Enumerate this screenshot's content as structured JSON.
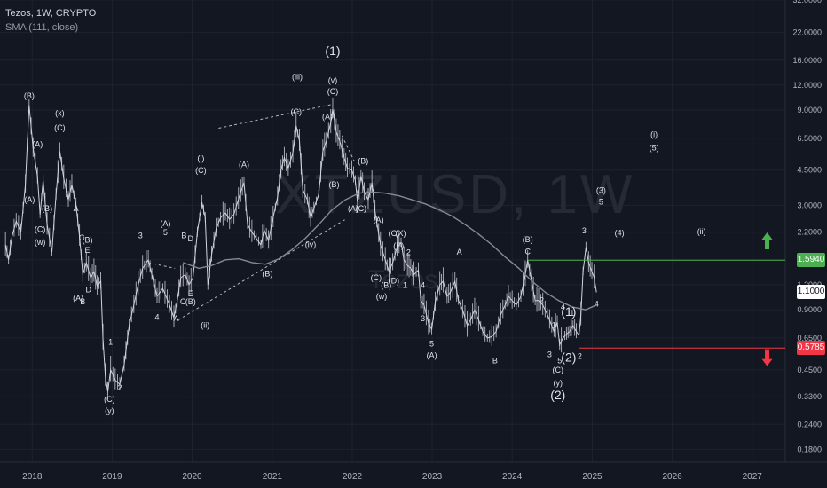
{
  "header": {
    "symbol_line": "Tezos, 1W, CRYPTO",
    "indicator_line": "SMA (111, close)"
  },
  "watermark": {
    "ticker": "XTZUSD, 1W",
    "name": "Tezos"
  },
  "colors": {
    "background": "#131722",
    "candle": "#d1d4dc",
    "sma": "#868993",
    "resistance": "#4caf50",
    "support": "#f23645",
    "grid": "#1e222d",
    "axis_text": "#b2b5be",
    "last_price_badge": "#ffffff"
  },
  "chart_data": {
    "type": "candlestick",
    "title": "Tezos, 1W, CRYPTO",
    "y_scale": "log",
    "ylim": [
      0.155,
      32.0
    ],
    "y_ticks": [
      "32.0000",
      "22.0000",
      "16.0000",
      "12.0000",
      "9.0000",
      "6.5000",
      "4.5000",
      "3.0000",
      "2.2000",
      "1.6000",
      "1.2000",
      "0.9000",
      "0.6500",
      "0.4500",
      "0.3300",
      "0.2400",
      "0.1800"
    ],
    "x_ticks": [
      "2018",
      "2019",
      "2020",
      "2021",
      "2022",
      "2023",
      "2024",
      "2025",
      "2026",
      "2027"
    ],
    "xlim": [
      "2017-08-07",
      "2027-06-01"
    ],
    "price_series": [
      [
        "2017-09-01",
        1.9
      ],
      [
        "2017-09-15",
        1.6
      ],
      [
        "2017-10-01",
        2.1
      ],
      [
        "2017-10-20",
        2.5
      ],
      [
        "2017-11-10",
        2.2
      ],
      [
        "2017-12-01",
        3.8
      ],
      [
        "2017-12-18",
        9.5
      ],
      [
        "2018-01-05",
        5.8
      ],
      [
        "2018-01-25",
        4.2
      ],
      [
        "2018-02-06",
        2.7
      ],
      [
        "2018-02-20",
        4.0
      ],
      [
        "2018-03-10",
        2.4
      ],
      [
        "2018-04-01",
        1.75
      ],
      [
        "2018-04-20",
        3.4
      ],
      [
        "2018-05-07",
        5.6
      ],
      [
        "2018-05-25",
        4.1
      ],
      [
        "2018-06-15",
        3.2
      ],
      [
        "2018-07-01",
        3.8
      ],
      [
        "2018-07-20",
        3.0
      ],
      [
        "2018-08-05",
        2.1
      ],
      [
        "2018-08-20",
        1.35
      ],
      [
        "2018-09-05",
        1.55
      ],
      [
        "2018-09-25",
        1.3
      ],
      [
        "2018-10-10",
        1.4
      ],
      [
        "2018-10-25",
        1.18
      ],
      [
        "2018-11-10",
        1.25
      ],
      [
        "2018-11-20",
        0.65
      ],
      [
        "2018-12-01",
        0.42
      ],
      [
        "2018-12-12",
        0.35
      ],
      [
        "2018-12-25",
        0.45
      ],
      [
        "2019-01-15",
        0.4
      ],
      [
        "2019-02-05",
        0.38
      ],
      [
        "2019-02-25",
        0.48
      ],
      [
        "2019-03-20",
        0.75
      ],
      [
        "2019-04-10",
        0.95
      ],
      [
        "2019-04-30",
        1.2
      ],
      [
        "2019-05-20",
        1.45
      ],
      [
        "2019-06-15",
        1.6
      ],
      [
        "2019-07-01",
        1.35
      ],
      [
        "2019-07-25",
        1.05
      ],
      [
        "2019-08-20",
        1.15
      ],
      [
        "2019-09-20",
        0.95
      ],
      [
        "2019-10-10",
        0.82
      ],
      [
        "2019-10-25",
        1.0
      ],
      [
        "2019-11-10",
        1.3
      ],
      [
        "2019-12-01",
        1.35
      ],
      [
        "2019-12-18",
        1.2
      ],
      [
        "2020-01-05",
        1.3
      ],
      [
        "2020-01-25",
        2.2
      ],
      [
        "2020-02-15",
        3.1
      ],
      [
        "2020-03-01",
        2.6
      ],
      [
        "2020-03-13",
        1.2
      ],
      [
        "2020-03-30",
        1.7
      ],
      [
        "2020-04-20",
        2.3
      ],
      [
        "2020-05-10",
        2.6
      ],
      [
        "2020-06-01",
        2.75
      ],
      [
        "2020-06-20",
        2.55
      ],
      [
        "2020-07-10",
        2.7
      ],
      [
        "2020-08-10",
        3.5
      ],
      [
        "2020-08-25",
        3.9
      ],
      [
        "2020-09-10",
        2.4
      ],
      [
        "2020-09-30",
        2.2
      ],
      [
        "2020-10-20",
        2.05
      ],
      [
        "2020-11-10",
        1.9
      ],
      [
        "2020-11-25",
        2.25
      ],
      [
        "2020-12-15",
        2.0
      ],
      [
        "2021-01-05",
        2.6
      ],
      [
        "2021-01-25",
        3.3
      ],
      [
        "2021-02-10",
        4.5
      ],
      [
        "2021-02-25",
        5.2
      ],
      [
        "2021-03-15",
        4.6
      ],
      [
        "2021-04-05",
        5.5
      ],
      [
        "2021-04-20",
        7.5
      ],
      [
        "2021-05-05",
        6.3
      ],
      [
        "2021-05-20",
        3.6
      ],
      [
        "2021-06-10",
        3.2
      ],
      [
        "2021-06-25",
        2.6
      ],
      [
        "2021-07-10",
        2.9
      ],
      [
        "2021-08-01",
        3.4
      ],
      [
        "2021-08-20",
        5.6
      ],
      [
        "2021-09-05",
        6.3
      ],
      [
        "2021-09-25",
        7.8
      ],
      [
        "2021-10-04",
        9.1
      ],
      [
        "2021-10-20",
        7.0
      ],
      [
        "2021-11-05",
        6.3
      ],
      [
        "2021-11-25",
        5.2
      ],
      [
        "2021-12-10",
        4.6
      ],
      [
        "2021-12-30",
        4.5
      ],
      [
        "2022-01-15",
        4.0
      ],
      [
        "2022-01-25",
        3.1
      ],
      [
        "2022-02-10",
        4.2
      ],
      [
        "2022-02-25",
        3.5
      ],
      [
        "2022-03-15",
        3.2
      ],
      [
        "2022-04-01",
        3.9
      ],
      [
        "2022-04-15",
        2.8
      ],
      [
        "2022-05-10",
        1.9
      ],
      [
        "2022-06-01",
        1.6
      ],
      [
        "2022-06-18",
        1.4
      ],
      [
        "2022-07-05",
        1.55
      ],
      [
        "2022-07-25",
        1.85
      ],
      [
        "2022-08-12",
        1.95
      ],
      [
        "2022-08-25",
        1.6
      ],
      [
        "2022-09-10",
        1.5
      ],
      [
        "2022-09-25",
        1.45
      ],
      [
        "2022-10-10",
        1.35
      ],
      [
        "2022-10-30",
        1.42
      ],
      [
        "2022-11-10",
        1.0
      ],
      [
        "2022-11-25",
        0.95
      ],
      [
        "2022-12-15",
        0.77
      ],
      [
        "2022-12-30",
        0.72
      ],
      [
        "2023-01-15",
        0.98
      ],
      [
        "2023-02-05",
        1.2
      ],
      [
        "2023-02-20",
        1.25
      ],
      [
        "2023-03-10",
        1.05
      ],
      [
        "2023-03-25",
        1.1
      ],
      [
        "2023-04-15",
        1.25
      ],
      [
        "2023-05-01",
        1.0
      ],
      [
        "2023-05-20",
        0.9
      ],
      [
        "2023-06-10",
        0.75
      ],
      [
        "2023-06-25",
        0.8
      ],
      [
        "2023-07-14",
        0.9
      ],
      [
        "2023-08-01",
        0.8
      ],
      [
        "2023-08-20",
        0.7
      ],
      [
        "2023-09-10",
        0.65
      ],
      [
        "2023-09-30",
        0.66
      ],
      [
        "2023-10-20",
        0.7
      ],
      [
        "2023-11-10",
        0.85
      ],
      [
        "2023-11-30",
        0.95
      ],
      [
        "2023-12-15",
        1.05
      ],
      [
        "2024-01-01",
        1.0
      ],
      [
        "2024-01-20",
        0.95
      ],
      [
        "2024-02-10",
        1.05
      ],
      [
        "2024-03-01",
        1.35
      ],
      [
        "2024-03-12",
        1.6
      ],
      [
        "2024-03-30",
        1.25
      ],
      [
        "2024-04-15",
        1.0
      ],
      [
        "2024-05-01",
        1.0
      ],
      [
        "2024-05-20",
        0.95
      ],
      [
        "2024-06-10",
        0.85
      ],
      [
        "2024-06-30",
        0.75
      ],
      [
        "2024-07-10",
        0.7
      ],
      [
        "2024-07-25",
        0.78
      ],
      [
        "2024-08-05",
        0.6
      ],
      [
        "2024-08-20",
        0.65
      ],
      [
        "2024-09-05",
        0.68
      ],
      [
        "2024-09-20",
        0.7
      ],
      [
        "2024-10-05",
        0.75
      ],
      [
        "2024-10-20",
        0.7
      ],
      [
        "2024-11-01",
        0.67
      ],
      [
        "2024-11-10",
        0.85
      ],
      [
        "2024-11-20",
        1.4
      ],
      [
        "2024-12-03",
        1.85
      ],
      [
        "2024-12-15",
        1.55
      ],
      [
        "2024-12-30",
        1.4
      ],
      [
        "2025-01-10",
        1.3
      ],
      [
        "2025-01-20",
        1.1
      ]
    ],
    "sma_series": [
      [
        "2019-11-20",
        1.55
      ],
      [
        "2020-02-01",
        1.45
      ],
      [
        "2020-04-01",
        1.5
      ],
      [
        "2020-06-01",
        1.6
      ],
      [
        "2020-08-01",
        1.62
      ],
      [
        "2020-10-01",
        1.55
      ],
      [
        "2020-12-01",
        1.52
      ],
      [
        "2021-02-01",
        1.62
      ],
      [
        "2021-04-01",
        1.8
      ],
      [
        "2021-06-01",
        2.05
      ],
      [
        "2021-08-01",
        2.4
      ],
      [
        "2021-10-01",
        2.85
      ],
      [
        "2021-12-01",
        3.2
      ],
      [
        "2022-02-01",
        3.45
      ],
      [
        "2022-04-01",
        3.5
      ],
      [
        "2022-06-01",
        3.45
      ],
      [
        "2022-08-01",
        3.35
      ],
      [
        "2022-10-01",
        3.2
      ],
      [
        "2022-12-01",
        3.05
      ],
      [
        "2023-02-01",
        2.85
      ],
      [
        "2023-04-01",
        2.65
      ],
      [
        "2023-06-01",
        2.4
      ],
      [
        "2023-08-01",
        2.15
      ],
      [
        "2023-10-01",
        1.9
      ],
      [
        "2023-12-01",
        1.65
      ],
      [
        "2024-02-01",
        1.45
      ],
      [
        "2024-04-01",
        1.25
      ],
      [
        "2024-06-01",
        1.1
      ],
      [
        "2024-08-01",
        1.0
      ],
      [
        "2024-10-01",
        0.93
      ],
      [
        "2024-12-01",
        0.9
      ],
      [
        "2025-01-20",
        0.95
      ]
    ],
    "horizontal_levels": [
      {
        "label": "1.5940",
        "value": 1.594,
        "color": "#4caf50",
        "from": "2024-03-12"
      },
      {
        "label": "0.5785",
        "value": 0.5785,
        "color": "#f23645",
        "from": "2024-11-01"
      }
    ],
    "last_price": {
      "label": "1.1000",
      "value": 1.1
    },
    "trendlines": [
      {
        "from": [
          "2020-05-01",
          7.3
        ],
        "to": [
          "2021-09-30",
          9.6
        ]
      },
      {
        "from": [
          "2019-10-30",
          0.8
        ],
        "to": [
          "2021-12-01",
          2.55
        ]
      },
      {
        "from": [
          "2019-06-15",
          1.55
        ],
        "to": [
          "2019-10-15",
          1.45
        ]
      },
      {
        "from": [
          "2021-11-15",
          6.7
        ],
        "to": [
          "2022-01-10",
          5.0
        ]
      }
    ],
    "arrows": [
      {
        "dir": "up",
        "date": "2027-03-10",
        "value": 1.98,
        "color": "#4caf50"
      },
      {
        "dir": "down",
        "date": "2027-03-10",
        "value": 0.52,
        "color": "#f23645"
      }
    ],
    "wave_labels": [
      {
        "t": "(B)",
        "d": "2017-12-18",
        "v": 10.3
      },
      {
        "t": "(A)",
        "d": "2018-01-25",
        "v": 5.9
      },
      {
        "t": "(C)",
        "d": "2018-02-06",
        "v": 2.2
      },
      {
        "t": "(w)",
        "d": "2018-02-06",
        "v": 1.9
      },
      {
        "t": "(x)",
        "d": "2018-05-07",
        "v": 8.4
      },
      {
        "t": "(C)",
        "d": "2018-05-07",
        "v": 7.1
      },
      {
        "t": "(A)",
        "d": "2017-12-20",
        "v": 3.1
      },
      {
        "t": "(B)",
        "d": "2018-03-10",
        "v": 2.8
      },
      {
        "t": "A",
        "d": "2018-07-20",
        "v": 2.8
      },
      {
        "t": "C",
        "d": "2018-08-15",
        "v": 2.0
      },
      {
        "t": "(B)",
        "d": "2018-09-10",
        "v": 1.95
      },
      {
        "t": "E",
        "d": "2018-09-10",
        "v": 1.73
      },
      {
        "t": "(A)",
        "d": "2018-07-30",
        "v": 1.0
      },
      {
        "t": "B",
        "d": "2018-08-20",
        "v": 0.96
      },
      {
        "t": "D",
        "d": "2018-09-15",
        "v": 1.1
      },
      {
        "t": "1",
        "d": "2018-12-25",
        "v": 0.6
      },
      {
        "t": "2",
        "d": "2019-02-05",
        "v": 0.355
      },
      {
        "t": "(C)",
        "d": "2018-12-20",
        "v": 0.31
      },
      {
        "t": "(y)",
        "d": "2018-12-20",
        "v": 0.272
      },
      {
        "t": "3",
        "d": "2019-05-10",
        "v": 2.05
      },
      {
        "t": "4",
        "d": "2019-07-25",
        "v": 0.8
      },
      {
        "t": "(A)",
        "d": "2019-09-01",
        "v": 2.35
      },
      {
        "t": "5",
        "d": "2019-09-01",
        "v": 2.13
      },
      {
        "t": "B",
        "d": "2019-11-25",
        "v": 2.05
      },
      {
        "t": "D",
        "d": "2019-12-25",
        "v": 1.98
      },
      {
        "t": "E",
        "d": "2019-12-25",
        "v": 1.05
      },
      {
        "t": "C",
        "d": "2019-11-20",
        "v": 0.96
      },
      {
        "t": "(B)",
        "d": "2019-12-25",
        "v": 0.96
      },
      {
        "t": "A",
        "d": "2019-10-20",
        "v": 0.79
      },
      {
        "t": "(ii)",
        "d": "2020-03-01",
        "v": 0.73
      },
      {
        "t": "(i)",
        "d": "2020-02-10",
        "v": 5.0
      },
      {
        "t": "(C)",
        "d": "2020-02-10",
        "v": 4.35
      },
      {
        "t": "(A)",
        "d": "2020-08-25",
        "v": 4.65
      },
      {
        "t": "(B)",
        "d": "2020-12-10",
        "v": 1.32
      },
      {
        "t": "(iii)",
        "d": "2021-04-25",
        "v": 12.8
      },
      {
        "t": "(C)",
        "d": "2021-04-20",
        "v": 8.55
      },
      {
        "t": "(iv)",
        "d": "2021-06-25",
        "v": 1.85
      },
      {
        "t": "(1)",
        "d": "2021-10-04",
        "v": 17.0
      },
      {
        "t": "(v)",
        "d": "2021-10-04",
        "v": 12.3
      },
      {
        "t": "(C)",
        "d": "2021-10-04",
        "v": 10.8
      },
      {
        "t": "(A)",
        "d": "2021-09-10",
        "v": 8.1
      },
      {
        "t": "(B)",
        "d": "2021-10-10",
        "v": 3.7
      },
      {
        "t": "(B)",
        "d": "2022-02-20",
        "v": 4.85
      },
      {
        "t": "(A)",
        "d": "2022-01-05",
        "v": 2.8
      },
      {
        "t": "(C)",
        "d": "2022-02-10",
        "v": 2.8
      },
      {
        "t": "(A)",
        "d": "2022-05-01",
        "v": 2.45
      },
      {
        "t": "(C)",
        "d": "2022-07-10",
        "v": 2.1
      },
      {
        "t": "(X)",
        "d": "2022-08-10",
        "v": 2.1
      },
      {
        "t": "(E)",
        "d": "2022-08-01",
        "v": 1.82
      },
      {
        "t": "2",
        "d": "2022-09-15",
        "v": 1.69
      },
      {
        "t": "(C)",
        "d": "2022-04-20",
        "v": 1.26
      },
      {
        "t": "(B)",
        "d": "2022-06-05",
        "v": 1.16
      },
      {
        "t": "(D)",
        "d": "2022-07-10",
        "v": 1.22
      },
      {
        "t": "1",
        "d": "2022-08-30",
        "v": 1.16
      },
      {
        "t": "(w)",
        "d": "2022-05-15",
        "v": 1.02
      },
      {
        "t": "4",
        "d": "2022-11-20",
        "v": 1.16
      },
      {
        "t": "3",
        "d": "2022-11-20",
        "v": 0.79
      },
      {
        "t": "5",
        "d": "2022-12-30",
        "v": 0.59
      },
      {
        "t": "(A)",
        "d": "2022-12-30",
        "v": 0.515
      },
      {
        "t": "A",
        "d": "2023-05-05",
        "v": 1.7
      },
      {
        "t": "B",
        "d": "2023-10-15",
        "v": 0.485
      },
      {
        "t": "(B)",
        "d": "2024-03-12",
        "v": 1.96
      },
      {
        "t": "C",
        "d": "2024-03-12",
        "v": 1.71
      },
      {
        "t": "2",
        "d": "2024-05-15",
        "v": 0.97
      },
      {
        "t": "4",
        "d": "2024-08-20",
        "v": 0.9
      },
      {
        "t": "1",
        "d": "2024-07-10",
        "v": 0.73
      },
      {
        "t": "(1)",
        "d": "2024-09-15",
        "v": 0.84
      },
      {
        "t": "1",
        "d": "2024-10-01",
        "v": 0.84
      },
      {
        "t": "3",
        "d": "2024-06-20",
        "v": 0.52
      },
      {
        "t": "5",
        "d": "2024-08-05",
        "v": 0.485
      },
      {
        "t": "(2)",
        "d": "2024-09-15",
        "v": 0.495
      },
      {
        "t": "2",
        "d": "2024-11-05",
        "v": 0.51
      },
      {
        "t": "(C)",
        "d": "2024-07-28",
        "v": 0.435
      },
      {
        "t": "(y)",
        "d": "2024-07-28",
        "v": 0.375
      },
      {
        "t": "(2)",
        "d": "2024-07-28",
        "v": 0.32
      },
      {
        "t": "3",
        "d": "2024-11-25",
        "v": 2.17
      },
      {
        "t": "4",
        "d": "2025-01-20",
        "v": 0.935
      },
      {
        "t": "(3)",
        "d": "2025-02-10",
        "v": 3.45
      },
      {
        "t": "5",
        "d": "2025-02-10",
        "v": 3.02
      },
      {
        "t": "(4)",
        "d": "2025-05-05",
        "v": 2.12
      },
      {
        "t": "(ii)",
        "d": "2026-05-15",
        "v": 2.15
      },
      {
        "t": "(i)",
        "d": "2025-10-10",
        "v": 6.6
      },
      {
        "t": "(5)",
        "d": "2025-10-10",
        "v": 5.65
      }
    ]
  }
}
